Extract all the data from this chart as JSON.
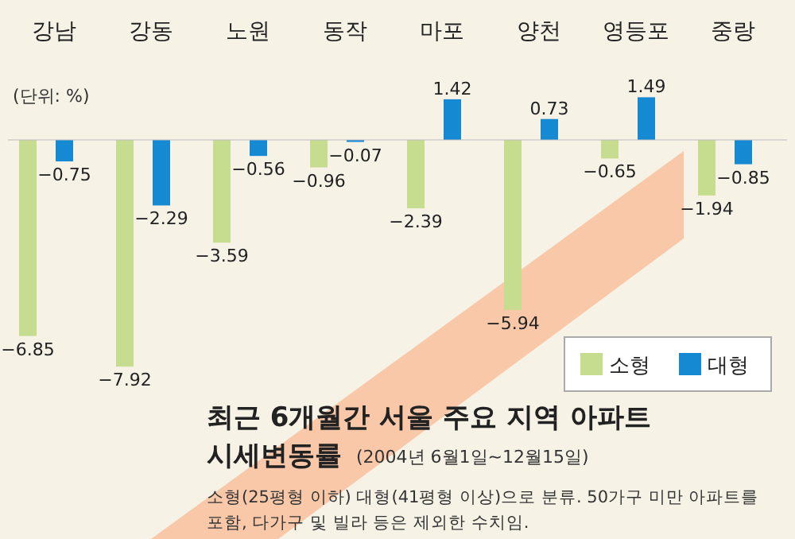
{
  "chart_data": {
    "type": "bar",
    "title": "최근 6개월간 서울 주요 지역 아파트",
    "subtitle": "시세변동률",
    "categories": [
      "강남",
      "강동",
      "노원",
      "동작",
      "마포",
      "양천",
      "영등포",
      "중랑"
    ],
    "series": [
      {
        "name": "소형",
        "color": "#c6dc8e",
        "values": [
          -6.85,
          -7.92,
          -3.59,
          -0.96,
          -2.39,
          -5.94,
          -0.65,
          -1.94
        ]
      },
      {
        "name": "대형",
        "color": "#1689d3",
        "values": [
          -0.75,
          -2.29,
          -0.56,
          -0.07,
          1.42,
          0.73,
          1.49,
          -0.85
        ]
      }
    ],
    "data_labels": true,
    "legend": "right",
    "annotations": [
      "(단위: %)",
      "(2004년 6월1일~12월15일)",
      "소형(25평형 이하) 대형(41평형 이상)으로 분류. 50가구 미만 아파트를",
      "포함, 다가구 및 빌라 등은 제외한 수치임."
    ]
  }
}
